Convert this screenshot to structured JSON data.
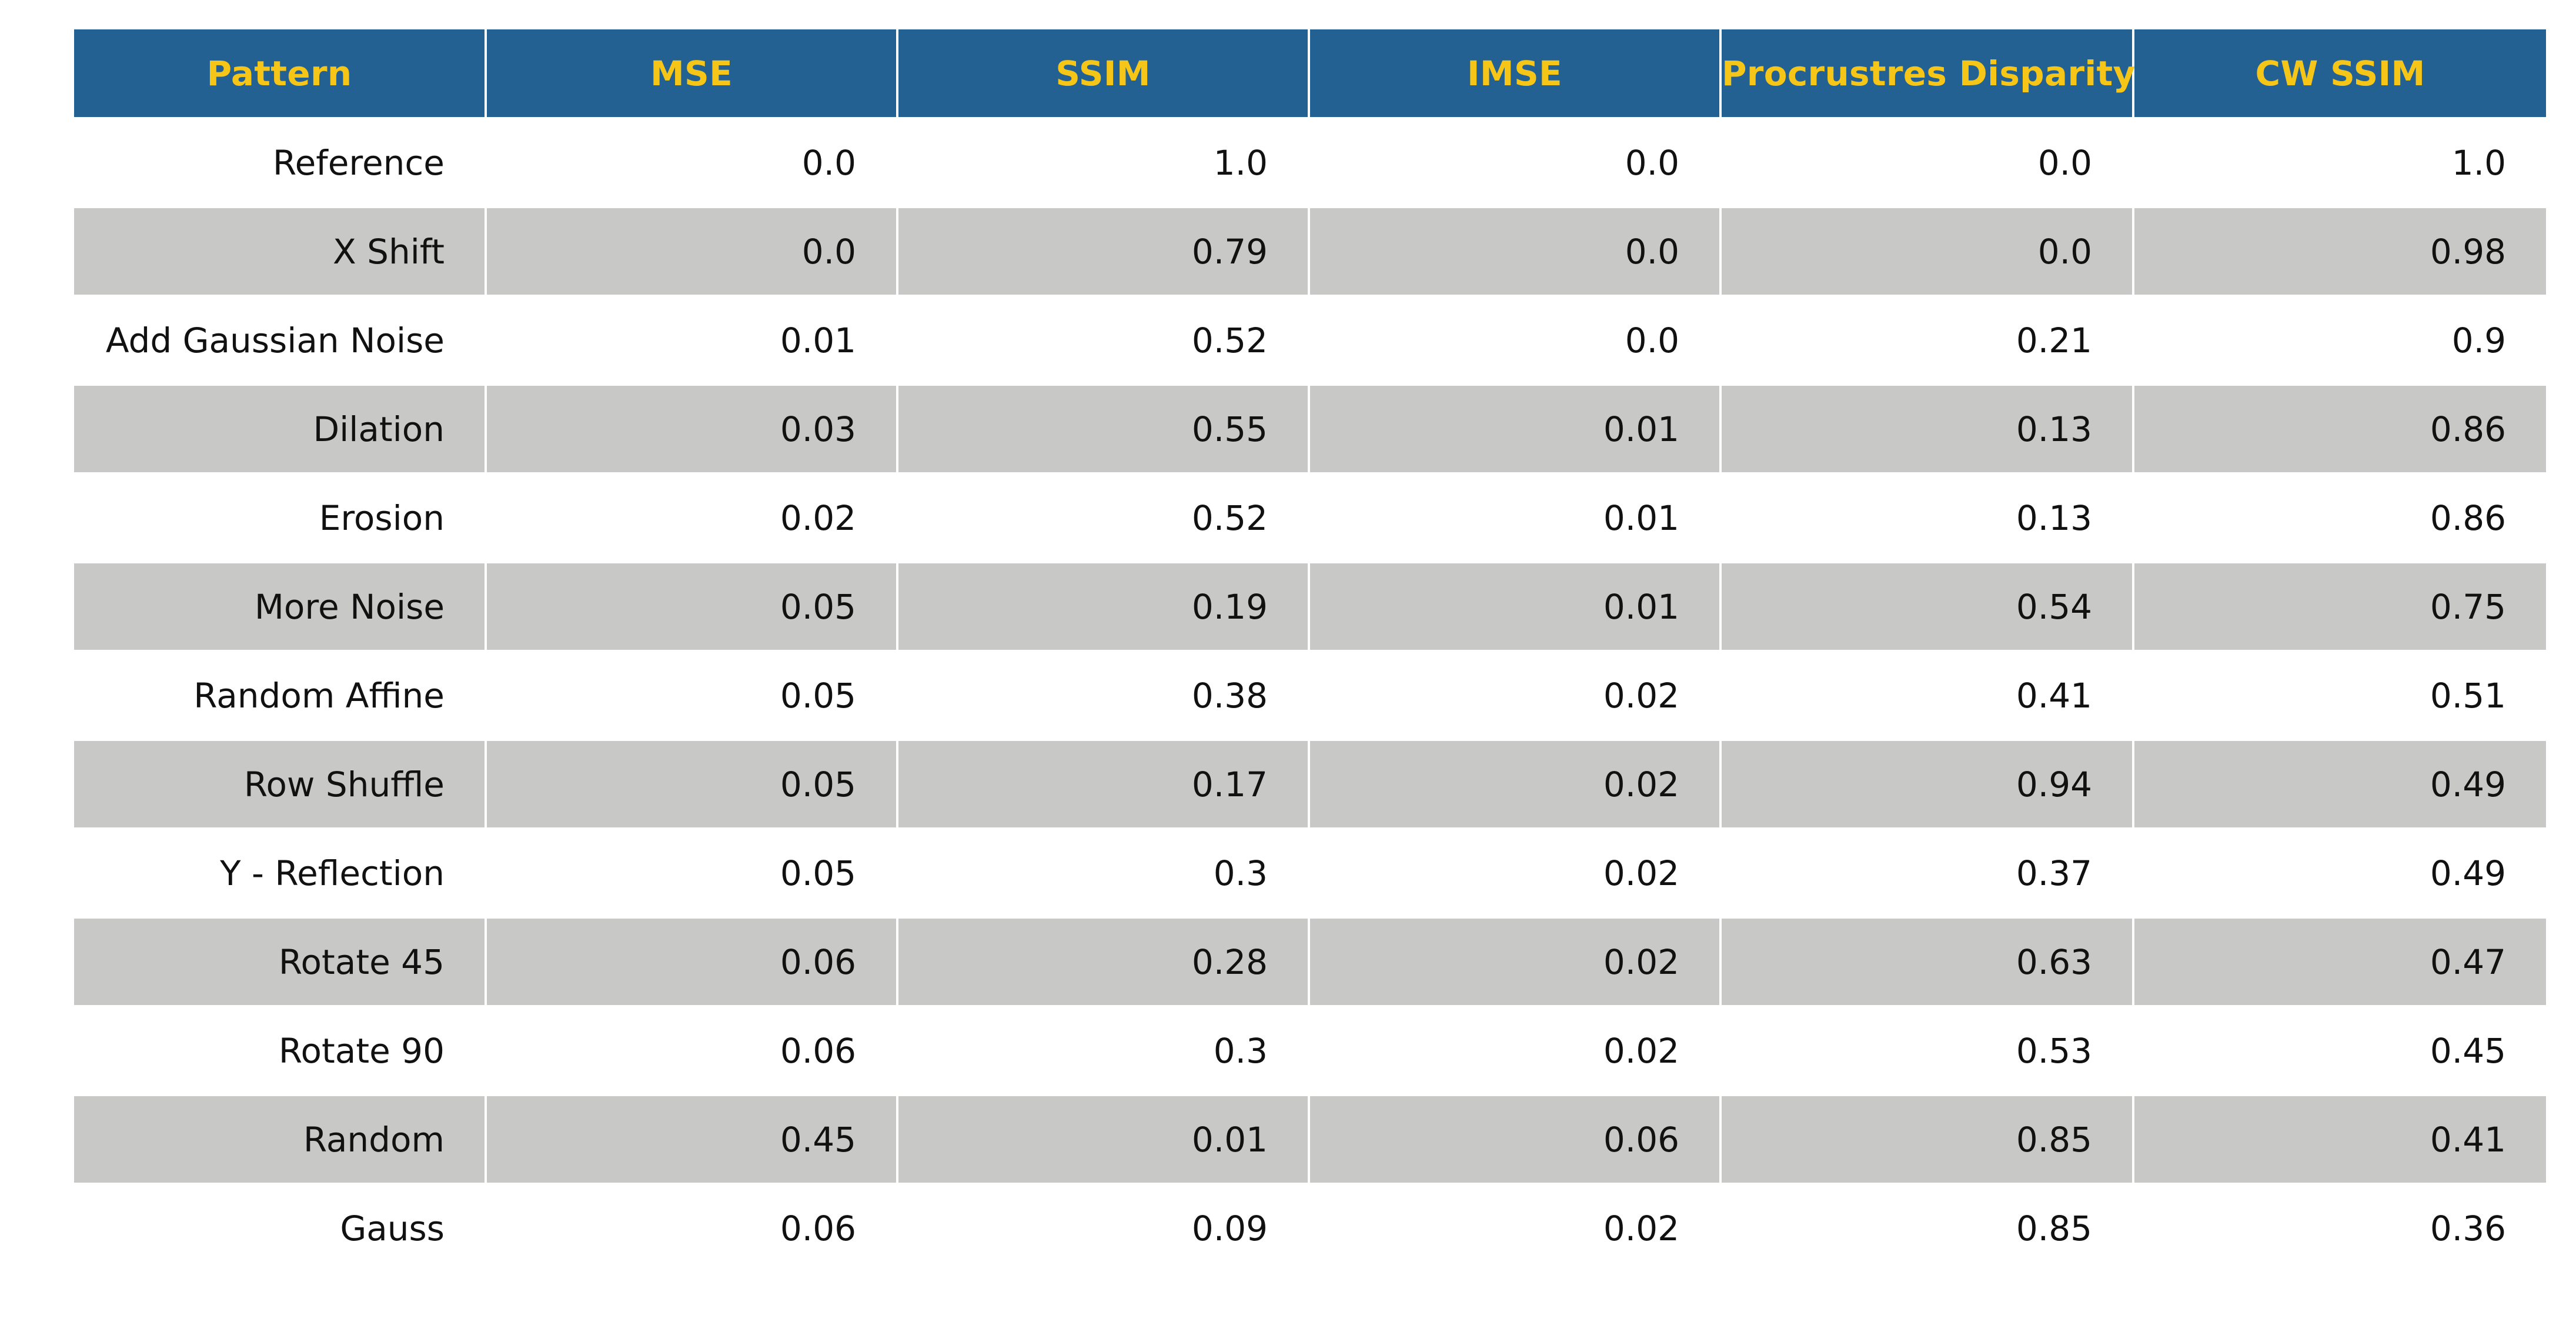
{
  "chart_data": {
    "type": "table",
    "columns": [
      "Pattern",
      "MSE",
      "SSIM",
      "IMSE",
      "Procrustres Disparity",
      "CW SSIM"
    ],
    "rows": [
      [
        "Reference",
        "0.0",
        "1.0",
        "0.0",
        "0.0",
        "1.0"
      ],
      [
        "X Shift",
        "0.0",
        "0.79",
        "0.0",
        "0.0",
        "0.98"
      ],
      [
        "Add Gaussian Noise",
        "0.01",
        "0.52",
        "0.0",
        "0.21",
        "0.9"
      ],
      [
        "Dilation",
        "0.03",
        "0.55",
        "0.01",
        "0.13",
        "0.86"
      ],
      [
        "Erosion",
        "0.02",
        "0.52",
        "0.01",
        "0.13",
        "0.86"
      ],
      [
        "More Noise",
        "0.05",
        "0.19",
        "0.01",
        "0.54",
        "0.75"
      ],
      [
        "Random Affine",
        "0.05",
        "0.38",
        "0.02",
        "0.41",
        "0.51"
      ],
      [
        "Row Shuffle",
        "0.05",
        "0.17",
        "0.02",
        "0.94",
        "0.49"
      ],
      [
        "Y - Reflection",
        "0.05",
        "0.3",
        "0.02",
        "0.37",
        "0.49"
      ],
      [
        "Rotate 45",
        "0.06",
        "0.28",
        "0.02",
        "0.63",
        "0.47"
      ],
      [
        "Rotate 90",
        "0.06",
        "0.3",
        "0.02",
        "0.53",
        "0.45"
      ],
      [
        "Random",
        "0.45",
        "0.01",
        "0.06",
        "0.85",
        "0.41"
      ],
      [
        "Gauss",
        "0.06",
        "0.09",
        "0.02",
        "0.85",
        "0.36"
      ]
    ]
  },
  "colors": {
    "header_background": "#236192",
    "header_text": "#f5c518",
    "stripe_background": "#c8c9c7",
    "row_background": "#ffffff",
    "cell_text": "#111111"
  }
}
